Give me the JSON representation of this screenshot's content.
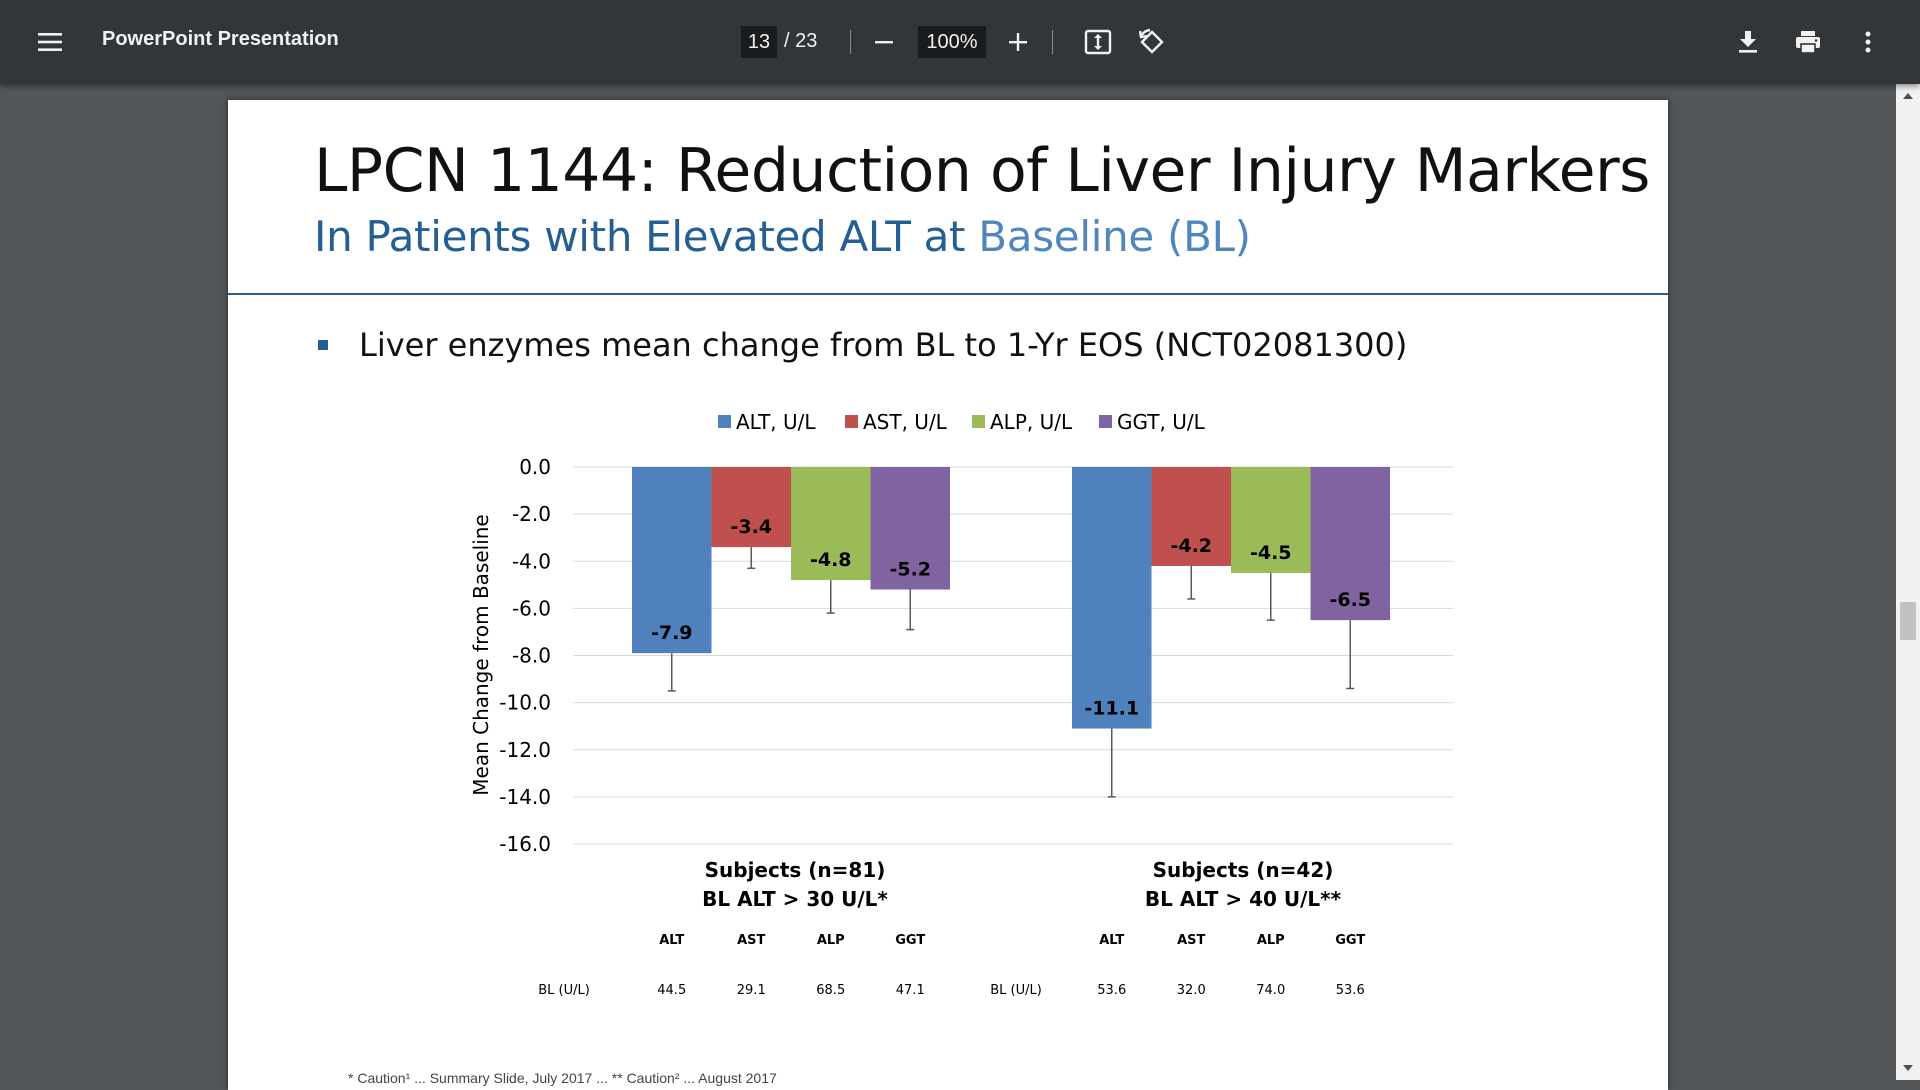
{
  "viewer": {
    "title": "PowerPoint Presentation",
    "page_current": "13",
    "page_total": "/ 23",
    "zoom": "100%",
    "icons": [
      "menu-icon",
      "minus-icon",
      "plus-icon",
      "fit-page-icon",
      "rotate-icon",
      "download-icon",
      "print-icon",
      "more-vert-icon"
    ]
  },
  "slide": {
    "title": "LPCN 1144: Reduction of Liver Injury Markers",
    "subtitle_part1": "In Patients with Elevated ALT at ",
    "subtitle_part2": "Baseline (BL)",
    "bullet": "Liver enzymes mean change from BL to 1-Yr EOS (NCT02081300)",
    "footnote": "* Caution¹ ... Summary Slide, July 2017 ... ** Caution² ... August 2017"
  },
  "chart_data": {
    "type": "bar",
    "ylabel": "Mean Change from Baseline",
    "ylim": [
      -16,
      0
    ],
    "yticks": [
      "0.0",
      "-2.0",
      "-4.0",
      "-6.0",
      "-8.0",
      "-10.0",
      "-12.0",
      "-14.0",
      "-16.0"
    ],
    "ytick_values": [
      0,
      -2,
      -4,
      -6,
      -8,
      -10,
      -12,
      -14,
      -16
    ],
    "grid": true,
    "legend_position": "top",
    "categories": [
      {
        "line1": "Subjects (n=81)",
        "line2": "BL ALT > 30 U/L*"
      },
      {
        "line1": "Subjects (n=42)",
        "line2": "BL ALT > 40 U/L**"
      }
    ],
    "series": [
      {
        "name": "ALT, U/L",
        "color": "#4f81bd",
        "values": [
          -7.9,
          -11.1
        ],
        "labels": [
          "-7.9",
          "-11.1"
        ],
        "error_low": [
          -9.5,
          -14.0
        ]
      },
      {
        "name": "AST, U/L",
        "color": "#c0504d",
        "values": [
          -3.4,
          -4.2
        ],
        "labels": [
          "-3.4",
          "-4.2"
        ],
        "error_low": [
          -4.3,
          -5.6
        ]
      },
      {
        "name": "ALP, U/L",
        "color": "#9bbb59",
        "values": [
          -4.8,
          -4.5
        ],
        "labels": [
          "-4.8",
          "-4.5"
        ],
        "error_low": [
          -6.2,
          -6.5
        ]
      },
      {
        "name": "GGT, U/L",
        "color": "#8064a2",
        "values": [
          -5.2,
          -6.5
        ],
        "labels": [
          "-5.2",
          "-6.5"
        ],
        "error_low": [
          -6.9,
          -9.4
        ]
      }
    ],
    "baseline_table": {
      "row_label": "BL (U/L)",
      "headers": [
        "ALT",
        "AST",
        "ALP",
        "GGT"
      ],
      "groups": [
        [
          "44.5",
          "29.1",
          "68.5",
          "47.1"
        ],
        [
          "53.6",
          "32.0",
          "74.0",
          "53.6"
        ]
      ]
    }
  }
}
